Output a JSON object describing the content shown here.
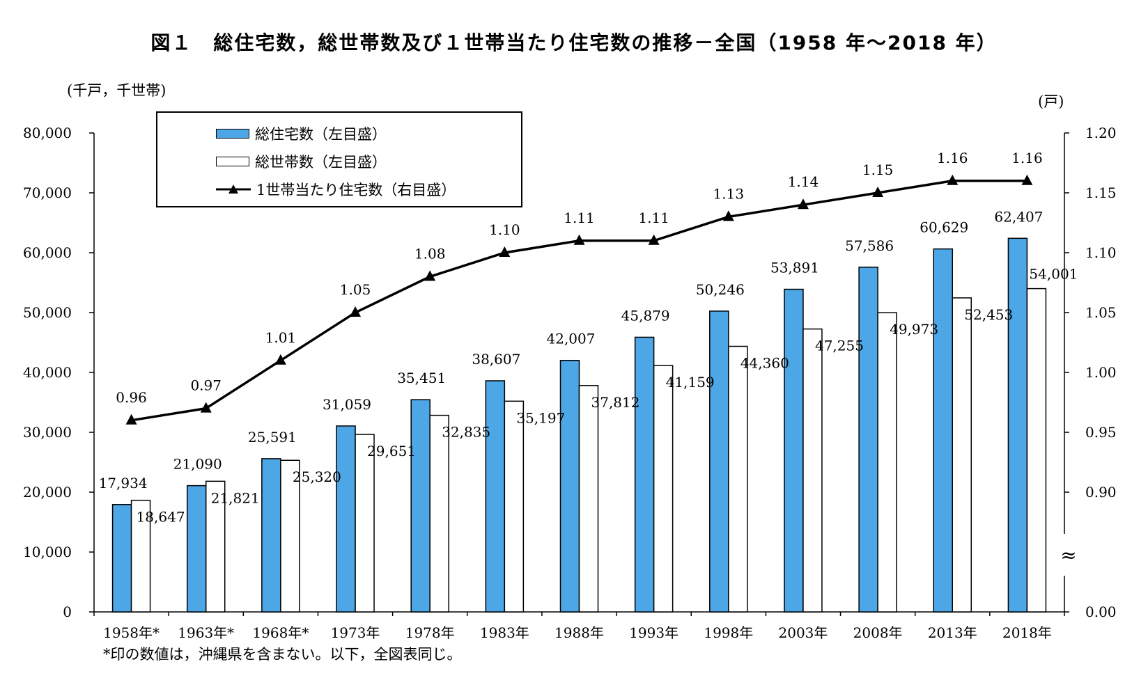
{
  "title": "図１　総住宅数，総世帯数及び１世帯当たり住宅数の推移－全国（1958 年～2018 年）",
  "unit_left": "(千戸，千世帯)",
  "unit_right": "(戸)",
  "footnote": "*印の数値は，沖縄県を含まない。以下，全図表同じ。",
  "legend": {
    "item1": "総住宅数（左目盛）",
    "item2": "総世帯数（左目盛）",
    "item3": "1世帯当たり住宅数（右目盛）"
  },
  "colors": {
    "housing": "#4da6e6",
    "households": "#ffffff",
    "ratio": "#000000"
  },
  "chart_data": {
    "type": "bar",
    "categories": [
      "1958年*",
      "1963年*",
      "1968年*",
      "1973年",
      "1978年",
      "1983年",
      "1988年",
      "1993年",
      "1998年",
      "2003年",
      "2008年",
      "2013年",
      "2018年"
    ],
    "series": [
      {
        "name": "総住宅数（左目盛）",
        "type": "bar",
        "axis": "left",
        "values": [
          17934,
          21090,
          25591,
          31059,
          35451,
          38607,
          42007,
          45879,
          50246,
          53891,
          57586,
          60629,
          62407
        ],
        "labels": [
          "17,934",
          "21,090",
          "25,591",
          "31,059",
          "35,451",
          "38,607",
          "42,007",
          "45,879",
          "50,246",
          "53,891",
          "57,586",
          "60,629",
          "62,407"
        ]
      },
      {
        "name": "総世帯数（左目盛）",
        "type": "bar",
        "axis": "left",
        "values": [
          18647,
          21821,
          25320,
          29651,
          32835,
          35197,
          37812,
          41159,
          44360,
          47255,
          49973,
          52453,
          54001
        ],
        "labels": [
          "18,647",
          "21,821",
          "25,320",
          "29,651",
          "32,835",
          "35,197",
          "37,812",
          "41,159",
          "44,360",
          "47,255",
          "49,973",
          "52,453",
          "54,001"
        ]
      },
      {
        "name": "1世帯当たり住宅数（右目盛）",
        "type": "line",
        "axis": "right",
        "values": [
          0.96,
          0.97,
          1.01,
          1.05,
          1.08,
          1.1,
          1.11,
          1.11,
          1.13,
          1.14,
          1.15,
          1.16,
          1.16
        ],
        "labels": [
          "0.96",
          "0.97",
          "1.01",
          "1.05",
          "1.08",
          "1.10",
          "1.11",
          "1.11",
          "1.13",
          "1.14",
          "1.15",
          "1.16",
          "1.16"
        ]
      }
    ],
    "left_axis": {
      "ylim": [
        0,
        80000
      ],
      "ticks": [
        0,
        10000,
        20000,
        30000,
        40000,
        50000,
        60000,
        70000,
        80000
      ],
      "tick_labels": [
        "0",
        "10,000",
        "20,000",
        "30,000",
        "40,000",
        "50,000",
        "60,000",
        "70,000",
        "80,000"
      ]
    },
    "right_axis": {
      "ylim": [
        0.0,
        1.2
      ],
      "broken_scale": true,
      "break_symbol": "≈",
      "ticks": [
        0.0,
        0.9,
        0.95,
        1.0,
        1.05,
        1.1,
        1.15,
        1.2
      ],
      "tick_labels": [
        "0.00",
        "0.90",
        "0.95",
        "1.00",
        "1.05",
        "1.10",
        "1.15",
        "1.20"
      ]
    },
    "grid": false,
    "legend_position": "top-left"
  }
}
